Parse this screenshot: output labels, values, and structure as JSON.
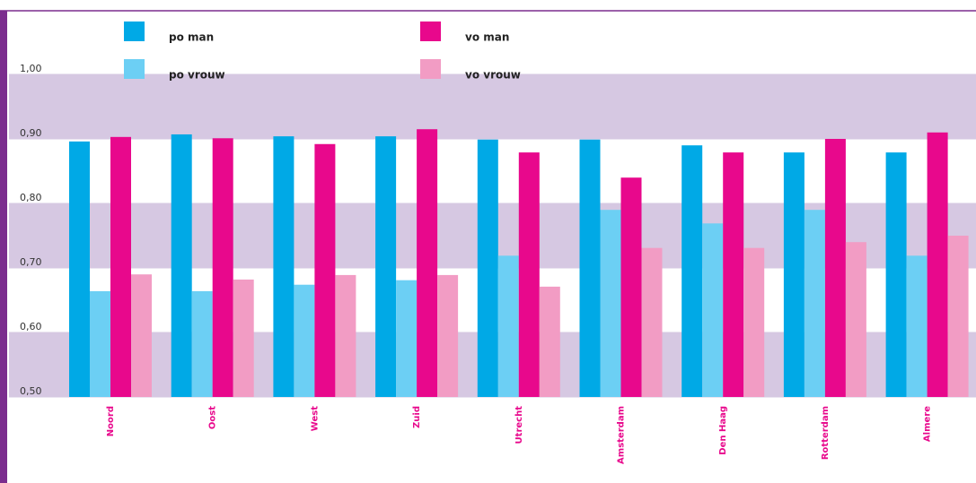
{
  "chart_data": {
    "type": "bar",
    "categories": [
      "Noord",
      "Oost",
      "West",
      "Zuid",
      "Utrecht",
      "Amsterdam",
      "Den Haag",
      "Rotterdam",
      "Almere"
    ],
    "series": [
      {
        "name": "po man",
        "color": "#00a9e6",
        "values": [
          0.896,
          0.907,
          0.904,
          0.904,
          0.899,
          0.899,
          0.89,
          0.879,
          0.879
        ]
      },
      {
        "name": "po vrouw",
        "color": "#6ccff4",
        "values": [
          0.664,
          0.664,
          0.674,
          0.681,
          0.719,
          0.79,
          0.769,
          0.79,
          0.719
        ]
      },
      {
        "name": "vo man",
        "color": "#e8088c",
        "values": [
          0.903,
          0.901,
          0.892,
          0.915,
          0.879,
          0.84,
          0.879,
          0.9,
          0.91
        ]
      },
      {
        "name": "vo vrouw",
        "color": "#f29cc4",
        "values": [
          0.69,
          0.682,
          0.689,
          0.689,
          0.671,
          0.731,
          0.731,
          0.74,
          0.75
        ]
      }
    ],
    "ylim": [
      0.5,
      1.1
    ],
    "yticks": [
      {
        "value": 0.5,
        "label": "0,50"
      },
      {
        "value": 0.6,
        "label": "0,60"
      },
      {
        "value": 0.7,
        "label": "0,70"
      },
      {
        "value": 0.8,
        "label": "0,80"
      },
      {
        "value": 0.9,
        "label": "0,90"
      },
      {
        "value": 1.0,
        "label": "1,00"
      }
    ],
    "band_color": "#d6c8e2"
  }
}
